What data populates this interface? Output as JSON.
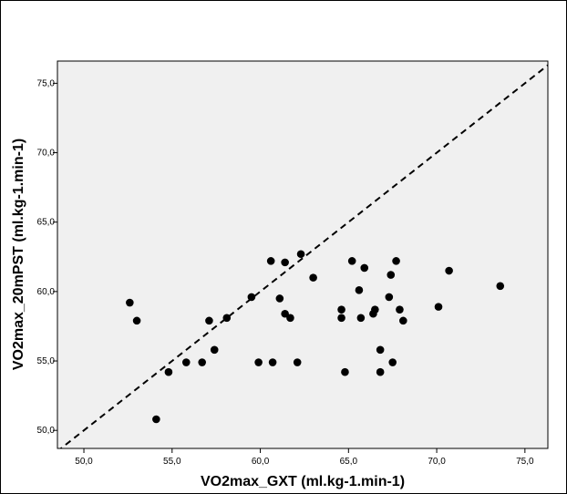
{
  "chart_data": {
    "type": "scatter",
    "title": "",
    "xlabel": "VO2max_GXT (ml.kg-1.min-1)",
    "ylabel": "VO2max_20mPST (ml.kg-1.min-1)",
    "xlim": [
      48.5,
      76.3
    ],
    "ylim": [
      48.7,
      76.6
    ],
    "x_ticks": [
      50,
      55,
      60,
      65,
      70,
      75
    ],
    "y_ticks": [
      50,
      55,
      60,
      65,
      70,
      75
    ],
    "x_tick_labels": [
      "50,0",
      "55,0",
      "60,0",
      "65,0",
      "70,0",
      "75,0"
    ],
    "y_tick_labels": [
      "50,0",
      "55,0",
      "60,0",
      "65,0",
      "70,0",
      "75,0"
    ],
    "grid": false,
    "reference_line": "identity (y = x), dashed",
    "colors": {
      "plot_background": "#f0f0f0",
      "points": "#000000",
      "reference_line": "#000000"
    },
    "points": [
      {
        "x": 52.6,
        "y": 59.2
      },
      {
        "x": 53.0,
        "y": 57.9
      },
      {
        "x": 54.1,
        "y": 50.8
      },
      {
        "x": 54.8,
        "y": 54.2
      },
      {
        "x": 55.8,
        "y": 54.9
      },
      {
        "x": 56.7,
        "y": 54.9
      },
      {
        "x": 57.1,
        "y": 57.9
      },
      {
        "x": 57.4,
        "y": 55.8
      },
      {
        "x": 58.1,
        "y": 58.1
      },
      {
        "x": 59.5,
        "y": 59.6
      },
      {
        "x": 59.9,
        "y": 54.9
      },
      {
        "x": 60.6,
        "y": 62.2
      },
      {
        "x": 60.7,
        "y": 54.9
      },
      {
        "x": 61.1,
        "y": 59.5
      },
      {
        "x": 61.4,
        "y": 58.4
      },
      {
        "x": 61.4,
        "y": 62.1
      },
      {
        "x": 61.7,
        "y": 58.1
      },
      {
        "x": 62.1,
        "y": 54.9
      },
      {
        "x": 62.3,
        "y": 62.7
      },
      {
        "x": 63.0,
        "y": 61.0
      },
      {
        "x": 64.6,
        "y": 58.7
      },
      {
        "x": 64.6,
        "y": 58.1
      },
      {
        "x": 64.8,
        "y": 54.2
      },
      {
        "x": 65.2,
        "y": 62.2
      },
      {
        "x": 65.6,
        "y": 60.1
      },
      {
        "x": 65.7,
        "y": 58.1
      },
      {
        "x": 65.9,
        "y": 61.7
      },
      {
        "x": 66.4,
        "y": 58.4
      },
      {
        "x": 66.5,
        "y": 58.7
      },
      {
        "x": 66.8,
        "y": 55.8
      },
      {
        "x": 66.8,
        "y": 54.2
      },
      {
        "x": 67.3,
        "y": 59.6
      },
      {
        "x": 67.4,
        "y": 61.2
      },
      {
        "x": 67.5,
        "y": 54.9
      },
      {
        "x": 67.7,
        "y": 62.2
      },
      {
        "x": 67.9,
        "y": 58.7
      },
      {
        "x": 68.1,
        "y": 57.9
      },
      {
        "x": 70.1,
        "y": 58.9
      },
      {
        "x": 70.7,
        "y": 61.5
      },
      {
        "x": 73.6,
        "y": 60.4
      }
    ]
  }
}
